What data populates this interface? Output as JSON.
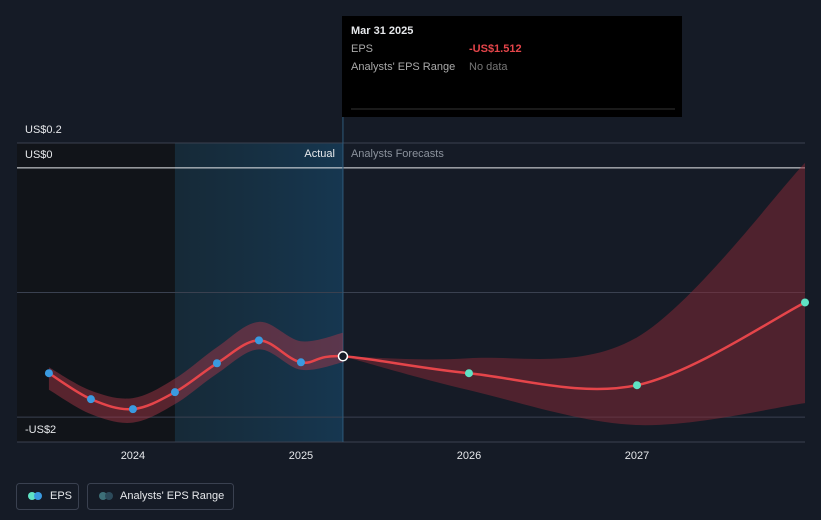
{
  "chart_data": {
    "type": "line",
    "xlim": [
      2023.31,
      2028
    ],
    "xticks": [
      2024,
      2025,
      2026,
      2027
    ],
    "ylim": [
      -2.2,
      0.2
    ],
    "yticks": [
      {
        "value": 0.2,
        "label": "US$0.2"
      },
      {
        "value": 0,
        "label": "US$0"
      },
      {
        "value": -1,
        "label": null
      },
      {
        "value": -2,
        "label": "-US$2"
      }
    ],
    "grid": true,
    "divider_x": 2025.25,
    "actual_label": "Actual",
    "forecast_label": "Analysts Forecasts",
    "series": [
      {
        "name": "EPS",
        "color": "#e5454a",
        "point_colors": {
          "actual": "#3a9ae0",
          "forecast": "#5fe3c4"
        },
        "x": [
          2023.5,
          2023.75,
          2024,
          2024.25,
          2024.5,
          2024.75,
          2025,
          2025.25,
          2026,
          2027,
          2028
        ],
        "values": [
          -1.648,
          -1.856,
          -1.936,
          -1.8,
          -1.568,
          -1.384,
          -1.56,
          -1.512,
          -1.648,
          -1.744,
          -1.08
        ]
      },
      {
        "name": "Analysts' EPS Range",
        "color": "#8a2a35",
        "x": [
          2025.25,
          2026,
          2027,
          2028
        ],
        "low": [
          -1.512,
          -1.784,
          -2.064,
          -1.888
        ],
        "high": [
          -1.512,
          -1.528,
          -1.36,
          0.04
        ]
      }
    ],
    "tooltip": {
      "date": "Mar 31 2025",
      "rows": [
        {
          "name": "EPS",
          "value_label": "-US$1.512"
        },
        {
          "name": "Analysts' EPS Range",
          "value_label": "No data"
        }
      ]
    }
  }
}
